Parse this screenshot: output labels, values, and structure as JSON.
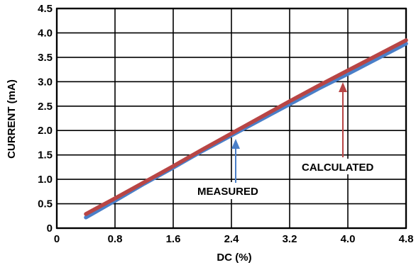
{
  "chart_data": {
    "type": "line",
    "xlabel": "DC (%)",
    "ylabel": "CURRENT (mA)",
    "xlim": [
      0,
      4.8
    ],
    "ylim": [
      0,
      4.5
    ],
    "xticks": [
      0,
      0.8,
      1.6,
      2.4,
      3.2,
      4.0,
      4.8
    ],
    "xtick_labels": [
      "0",
      "0.8",
      "1.6",
      "2.4",
      "3.2",
      "4.0",
      "4.8"
    ],
    "yticks": [
      0,
      0.5,
      1.0,
      1.5,
      2.0,
      2.5,
      3.0,
      3.5,
      4.0,
      4.5
    ],
    "ytick_labels": [
      "0",
      "0.5",
      "1.0",
      "1.5",
      "2.0",
      "2.5",
      "3.0",
      "3.5",
      "4.0",
      "4.5"
    ],
    "grid": true,
    "series": [
      {
        "name": "MEASURED",
        "color": "#4a7fc8",
        "x": [
          0.4,
          0.8,
          1.2,
          1.6,
          2.0,
          2.4,
          2.8,
          3.2,
          3.6,
          4.0,
          4.4,
          4.8
        ],
        "y": [
          0.22,
          0.56,
          0.91,
          1.24,
          1.58,
          1.9,
          2.22,
          2.54,
          2.86,
          3.16,
          3.47,
          3.78
        ]
      },
      {
        "name": "CALCULATED",
        "color": "#b84545",
        "x": [
          0.4,
          0.8,
          1.2,
          1.6,
          2.0,
          2.4,
          2.8,
          3.2,
          3.6,
          4.0,
          4.4,
          4.8
        ],
        "y": [
          0.29,
          0.61,
          0.94,
          1.27,
          1.61,
          1.94,
          2.27,
          2.6,
          2.92,
          3.23,
          3.54,
          3.85
        ]
      }
    ],
    "annotations": [
      {
        "text": "MEASURED",
        "series": 0,
        "point_x": 2.4,
        "point_y": 1.93,
        "arrow_color": "#4a7fc8"
      },
      {
        "text": "CALCULATED",
        "series": 1,
        "point_x": 3.9,
        "point_y": 3.16,
        "arrow_color": "#b84545"
      }
    ]
  }
}
